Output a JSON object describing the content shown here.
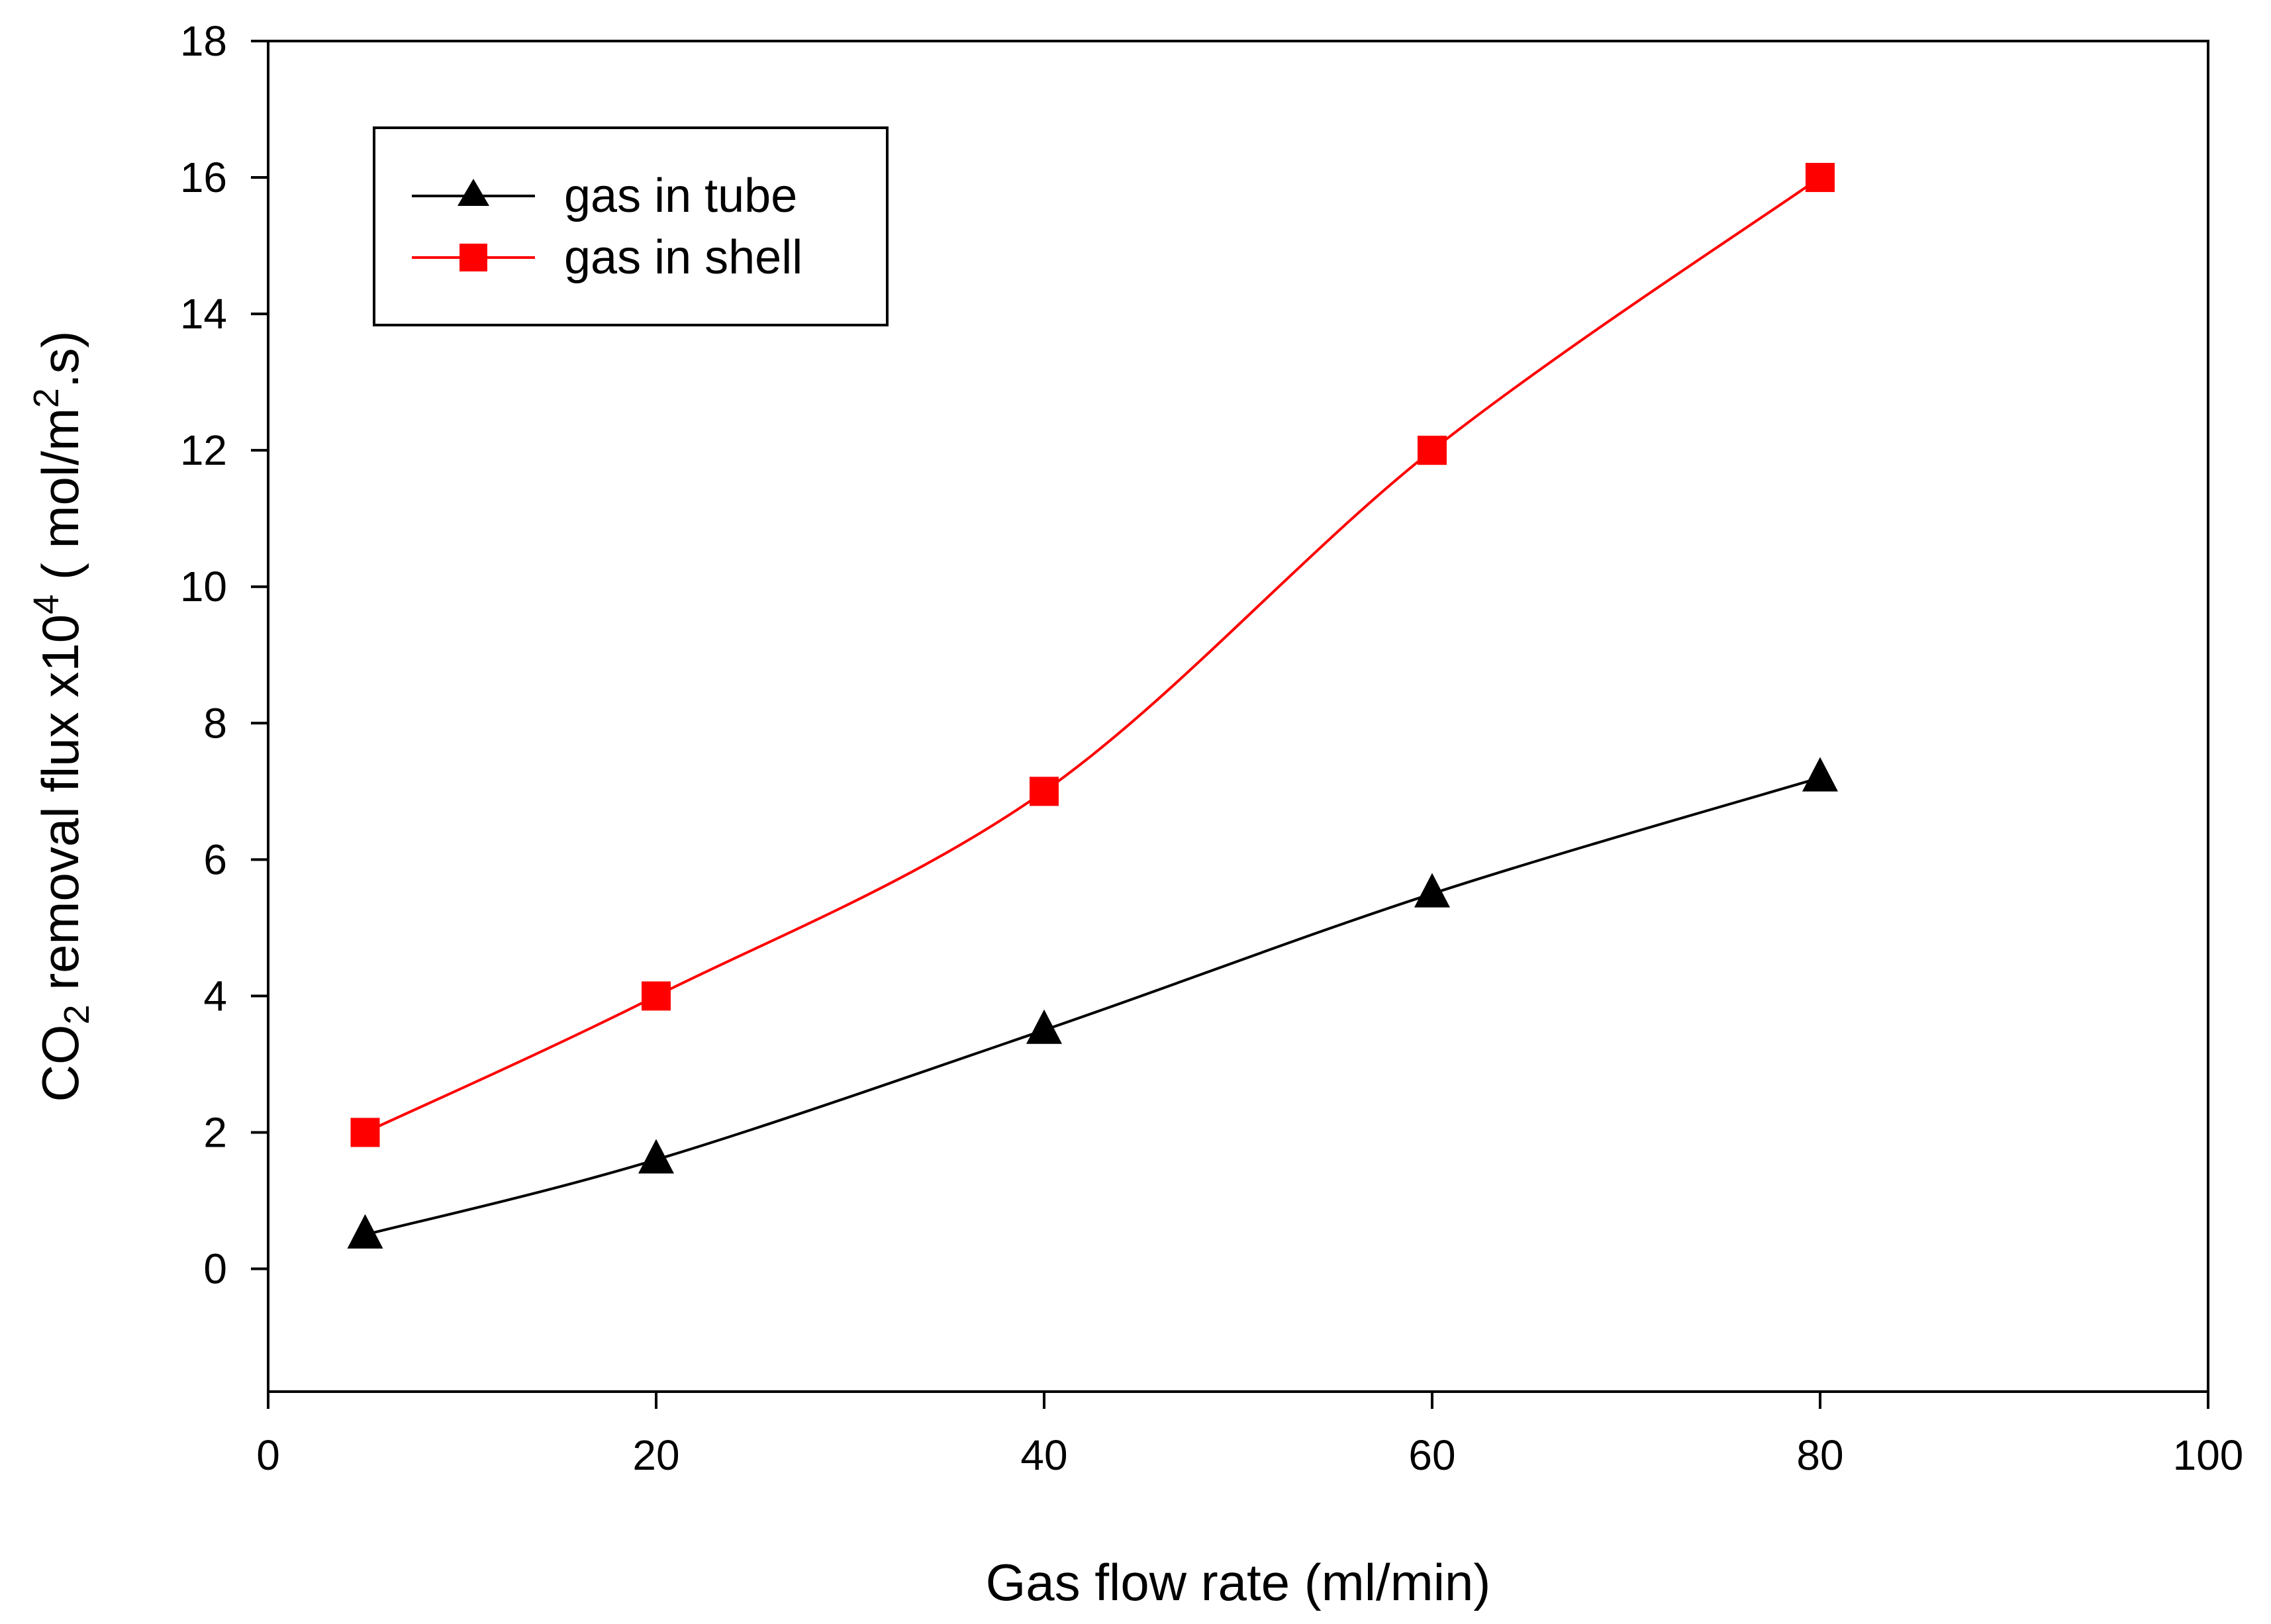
{
  "chart_data": {
    "type": "line",
    "x": [
      5,
      20,
      40,
      60,
      80
    ],
    "series": [
      {
        "name": "gas in tube",
        "values": [
          0.5,
          1.6,
          3.5,
          5.5,
          7.2
        ],
        "color": "#000000",
        "marker": "triangle"
      },
      {
        "name": "gas in shell",
        "values": [
          2,
          4,
          7,
          12,
          16
        ],
        "color": "#ff0000",
        "marker": "square"
      }
    ],
    "xlabel": "Gas flow rate (ml/min)",
    "ylabel": {
      "prefix": "CO",
      "subscript": "2",
      "middle": " removal flux x10",
      "superscript_1": "4",
      "unit_prefix": " ( mol/m",
      "superscript_2": "2",
      "unit_suffix": ".s)"
    },
    "xlim": [
      0,
      100
    ],
    "ylim": [
      -1.8,
      18
    ],
    "xticks": [
      "0",
      "20",
      "40",
      "60",
      "80",
      "100"
    ],
    "yticks": [
      "0",
      "2",
      "4",
      "6",
      "8",
      "10",
      "12",
      "14",
      "16",
      "18"
    ],
    "grid": false,
    "legend_position": "top-left"
  }
}
